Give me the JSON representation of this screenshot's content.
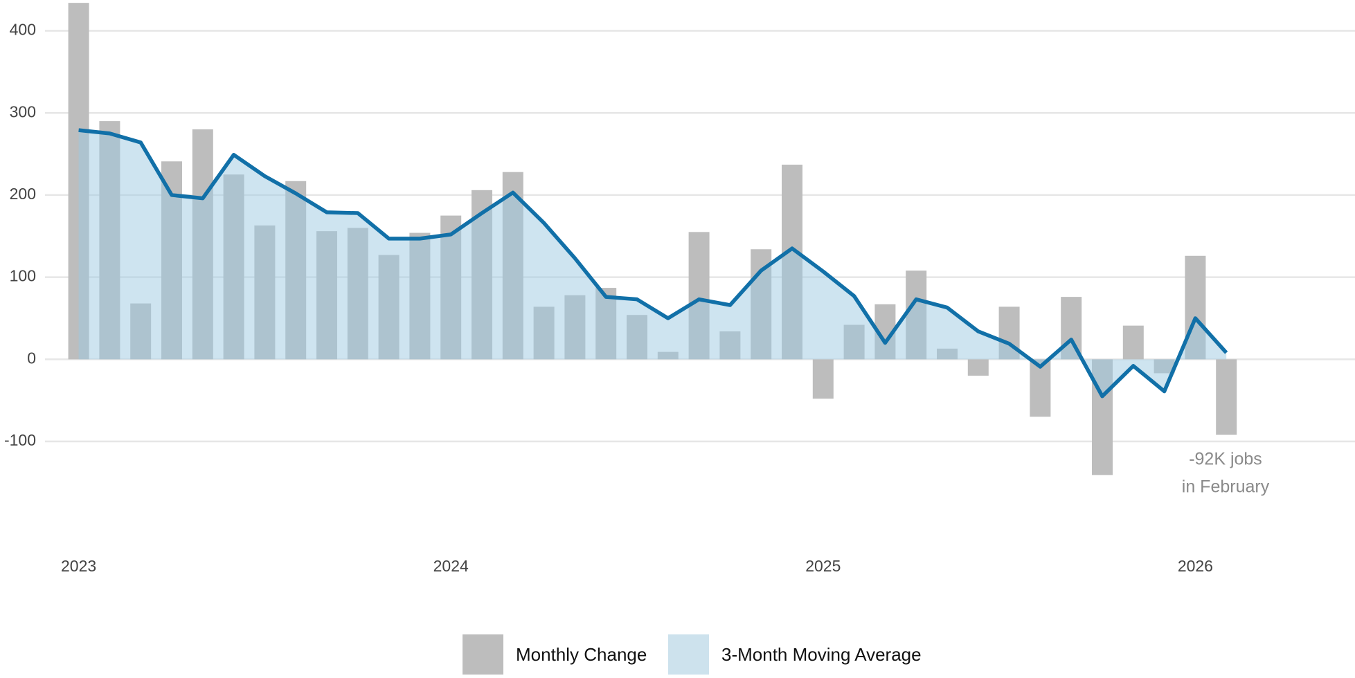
{
  "chart_data": {
    "type": "bar_line",
    "categories": [
      "2023",
      null,
      null,
      null,
      null,
      null,
      null,
      null,
      null,
      null,
      null,
      null,
      "2024",
      null,
      null,
      null,
      null,
      null,
      null,
      null,
      null,
      null,
      null,
      null,
      "2025",
      null,
      null,
      null,
      null,
      null,
      null,
      null,
      null,
      null,
      null,
      null,
      "2026",
      null
    ],
    "series": [
      {
        "name": "Monthly Change",
        "type": "bar",
        "color": "#bdbdbd",
        "values": [
          434,
          290,
          68,
          241,
          280,
          225,
          163,
          217,
          156,
          160,
          127,
          154,
          175,
          206,
          228,
          64,
          78,
          87,
          54,
          9,
          155,
          34,
          134,
          237,
          -48,
          42,
          67,
          108,
          13,
          -20,
          64,
          -70,
          76,
          -141,
          41,
          -17,
          126,
          -92
        ]
      },
      {
        "name": "3-Month Moving Average",
        "type": "line",
        "color": "#cde2ed",
        "line_color": "#1170a8",
        "values": [
          279,
          275,
          264,
          200,
          196,
          249,
          223,
          202,
          179,
          178,
          147,
          147,
          152,
          178,
          203,
          166,
          123,
          76,
          73,
          50,
          73,
          66,
          108,
          135,
          107,
          77,
          20,
          73,
          63,
          34,
          19,
          -9,
          24,
          -45,
          -8,
          -39,
          50,
          8
        ]
      }
    ],
    "ylim": [
      -180,
      437.5
    ],
    "yticks": [
      -100,
      0,
      100,
      200,
      300,
      400
    ],
    "grid": true,
    "annotation": [
      "-92K jobs",
      "in February"
    ]
  }
}
